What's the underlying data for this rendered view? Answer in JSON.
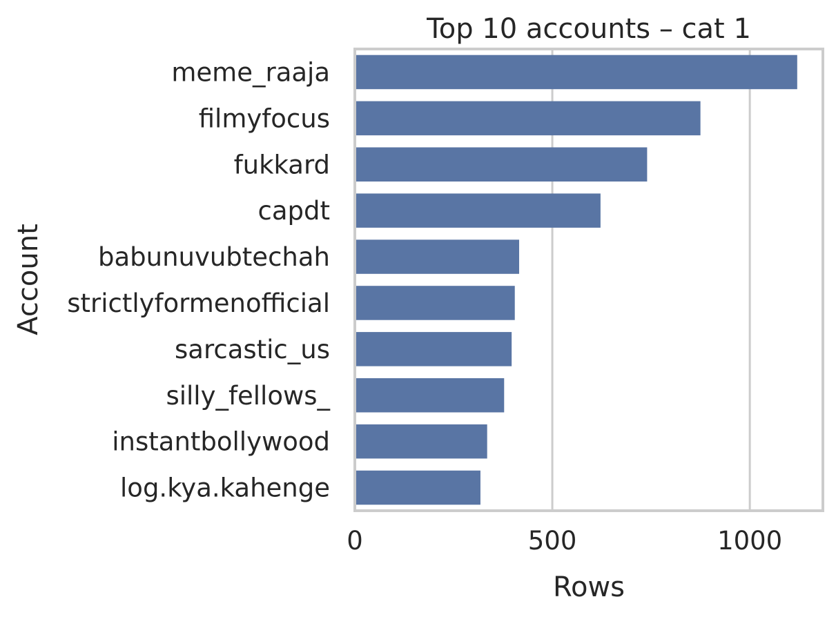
{
  "chart_data": {
    "type": "bar",
    "orientation": "horizontal",
    "title": "Top 10 accounts – cat 1",
    "xlabel": "Rows",
    "ylabel": "Account",
    "categories": [
      "meme_raaja",
      "filmyfocus",
      "fukkard",
      "capdt",
      "babunuvubtechah",
      "strictlyformenofficial",
      "sarcastic_us",
      "silly_fellows_",
      "instantbollywood",
      "log.kya.kahenge"
    ],
    "values": [
      1120,
      875,
      740,
      622,
      416,
      405,
      397,
      378,
      335,
      318
    ],
    "xlim": [
      0,
      1185
    ],
    "xticks": [
      0,
      500,
      1000
    ],
    "xtick_labels": [
      "0",
      "500",
      "1000"
    ],
    "grid": true,
    "bar_color": "#5975a4"
  }
}
